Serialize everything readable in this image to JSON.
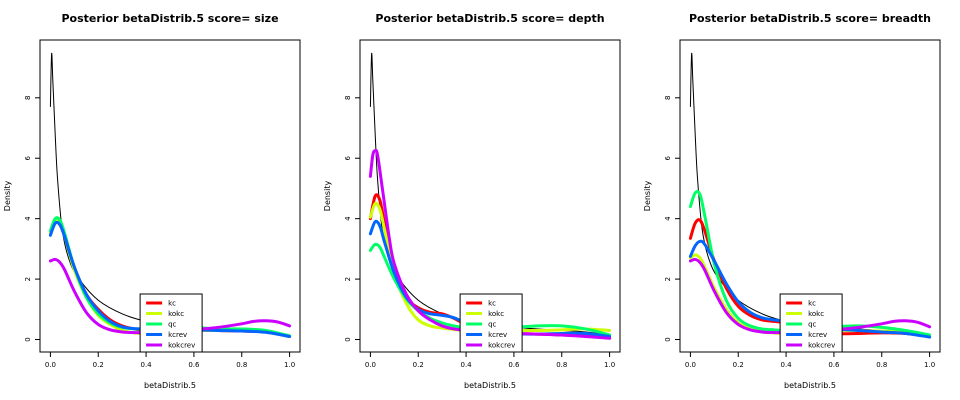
{
  "chart_data": [
    {
      "type": "line",
      "title": "Posterior betaDistrib.5  score= size",
      "xlabel": "betaDistrib.5",
      "ylabel": "Density",
      "xlim": [
        0,
        1
      ],
      "ylim": [
        0,
        9.5
      ],
      "xticks": [
        "0.0",
        "0.2",
        "0.4",
        "0.6",
        "0.8",
        "1.0"
      ],
      "yticks": [
        "0",
        "2",
        "4",
        "6",
        "8"
      ],
      "legend_position": "bottom-center",
      "prior": {
        "x": [
          0.0,
          0.005,
          0.01,
          0.02,
          0.03,
          0.05,
          0.08,
          0.12,
          0.2,
          0.3,
          0.4,
          0.5,
          0.6,
          0.7,
          0.8,
          0.9,
          1.0
        ],
        "y": [
          7.7,
          9.45,
          8.6,
          6.8,
          5.3,
          3.6,
          2.6,
          2.0,
          1.3,
          0.85,
          0.6,
          0.47,
          0.4,
          0.35,
          0.3,
          0.25,
          0.15
        ]
      },
      "series": [
        {
          "name": "kc",
          "color": "#ff0000",
          "x": [
            0.0,
            0.02,
            0.04,
            0.06,
            0.1,
            0.15,
            0.2,
            0.25,
            0.3,
            0.35,
            0.4,
            0.5,
            0.6,
            0.7,
            0.8,
            0.9,
            1.0
          ],
          "y": [
            3.5,
            3.85,
            3.8,
            3.4,
            2.4,
            1.5,
            1.0,
            0.65,
            0.45,
            0.35,
            0.3,
            0.28,
            0.3,
            0.3,
            0.28,
            0.25,
            0.1
          ]
        },
        {
          "name": "kokc",
          "color": "#ccff00",
          "x": [
            0.0,
            0.02,
            0.04,
            0.06,
            0.1,
            0.15,
            0.2,
            0.25,
            0.3,
            0.35,
            0.4,
            0.5,
            0.6,
            0.7,
            0.8,
            0.9,
            1.0
          ],
          "y": [
            3.5,
            3.9,
            3.85,
            3.4,
            2.3,
            1.4,
            0.8,
            0.5,
            0.3,
            0.22,
            0.2,
            0.25,
            0.3,
            0.3,
            0.3,
            0.28,
            0.12
          ]
        },
        {
          "name": "qc",
          "color": "#00ff66",
          "x": [
            0.0,
            0.02,
            0.04,
            0.06,
            0.1,
            0.15,
            0.2,
            0.25,
            0.3,
            0.35,
            0.4,
            0.5,
            0.6,
            0.7,
            0.8,
            0.9,
            1.0
          ],
          "y": [
            3.6,
            4.0,
            3.95,
            3.5,
            2.4,
            1.4,
            0.85,
            0.55,
            0.4,
            0.35,
            0.35,
            0.38,
            0.4,
            0.35,
            0.35,
            0.3,
            0.12
          ]
        },
        {
          "name": "kcrev",
          "color": "#0066ff",
          "x": [
            0.0,
            0.02,
            0.04,
            0.06,
            0.1,
            0.15,
            0.2,
            0.25,
            0.3,
            0.35,
            0.4,
            0.5,
            0.6,
            0.7,
            0.8,
            0.9,
            1.0
          ],
          "y": [
            3.45,
            3.85,
            3.8,
            3.4,
            2.4,
            1.5,
            0.95,
            0.6,
            0.42,
            0.36,
            0.35,
            0.33,
            0.32,
            0.3,
            0.28,
            0.24,
            0.1
          ]
        },
        {
          "name": "kokcrev",
          "color": "#cc00ff",
          "x": [
            0.0,
            0.02,
            0.04,
            0.06,
            0.1,
            0.15,
            0.2,
            0.25,
            0.3,
            0.35,
            0.4,
            0.5,
            0.6,
            0.7,
            0.8,
            0.85,
            0.9,
            0.95,
            1.0
          ],
          "y": [
            2.6,
            2.65,
            2.55,
            2.3,
            1.6,
            0.9,
            0.5,
            0.32,
            0.25,
            0.23,
            0.23,
            0.28,
            0.33,
            0.4,
            0.52,
            0.6,
            0.62,
            0.58,
            0.45
          ]
        }
      ],
      "legend": [
        "kc",
        "kokc",
        "qc",
        "kcrev",
        "kokcrev"
      ]
    },
    {
      "type": "line",
      "title": "Posterior betaDistrib.5  score= depth",
      "xlabel": "betaDistrib.5",
      "ylabel": "Density",
      "xlim": [
        0,
        1
      ],
      "ylim": [
        0,
        9.5
      ],
      "xticks": [
        "0.0",
        "0.2",
        "0.4",
        "0.6",
        "0.8",
        "1.0"
      ],
      "yticks": [
        "0",
        "2",
        "4",
        "6",
        "8"
      ],
      "legend_position": "bottom-center",
      "prior": {
        "x": [
          0.0,
          0.005,
          0.01,
          0.02,
          0.03,
          0.05,
          0.08,
          0.12,
          0.2,
          0.3,
          0.4,
          0.5,
          0.6,
          0.7,
          0.8,
          0.9,
          1.0
        ],
        "y": [
          7.7,
          9.45,
          8.6,
          6.8,
          5.3,
          3.6,
          2.6,
          2.0,
          1.3,
          0.85,
          0.6,
          0.47,
          0.4,
          0.35,
          0.3,
          0.25,
          0.15
        ]
      },
      "series": [
        {
          "name": "kc",
          "color": "#ff0000",
          "x": [
            0.0,
            0.02,
            0.04,
            0.06,
            0.1,
            0.15,
            0.2,
            0.25,
            0.3,
            0.35,
            0.4,
            0.5,
            0.6,
            0.7,
            0.8,
            0.9,
            1.0
          ],
          "y": [
            4.0,
            4.75,
            4.6,
            3.8,
            2.3,
            1.4,
            1.05,
            0.9,
            0.85,
            0.7,
            0.5,
            0.28,
            0.2,
            0.18,
            0.15,
            0.12,
            0.05
          ]
        },
        {
          "name": "kokc",
          "color": "#ccff00",
          "x": [
            0.0,
            0.02,
            0.04,
            0.06,
            0.1,
            0.15,
            0.2,
            0.25,
            0.3,
            0.35,
            0.4,
            0.5,
            0.6,
            0.7,
            0.8,
            0.9,
            1.0
          ],
          "y": [
            4.05,
            4.5,
            4.3,
            3.6,
            2.2,
            1.2,
            0.65,
            0.45,
            0.38,
            0.33,
            0.3,
            0.3,
            0.3,
            0.3,
            0.32,
            0.35,
            0.3
          ]
        },
        {
          "name": "qc",
          "color": "#00ff66",
          "x": [
            0.0,
            0.02,
            0.04,
            0.06,
            0.1,
            0.15,
            0.2,
            0.25,
            0.3,
            0.35,
            0.4,
            0.5,
            0.6,
            0.7,
            0.8,
            0.9,
            1.0
          ],
          "y": [
            2.95,
            3.15,
            3.05,
            2.7,
            2.0,
            1.35,
            0.95,
            0.7,
            0.55,
            0.45,
            0.38,
            0.35,
            0.4,
            0.45,
            0.45,
            0.35,
            0.15
          ]
        },
        {
          "name": "kcrev",
          "color": "#0066ff",
          "x": [
            0.0,
            0.02,
            0.04,
            0.06,
            0.1,
            0.15,
            0.2,
            0.25,
            0.3,
            0.35,
            0.4,
            0.5,
            0.6,
            0.7,
            0.8,
            0.9,
            1.0
          ],
          "y": [
            3.5,
            3.9,
            3.75,
            3.2,
            2.2,
            1.4,
            1.0,
            0.85,
            0.8,
            0.72,
            0.55,
            0.3,
            0.2,
            0.18,
            0.2,
            0.2,
            0.1
          ]
        },
        {
          "name": "kokcrev",
          "color": "#cc00ff",
          "x": [
            0.0,
            0.01,
            0.02,
            0.03,
            0.05,
            0.08,
            0.1,
            0.15,
            0.2,
            0.25,
            0.3,
            0.35,
            0.4,
            0.5,
            0.6,
            0.7,
            0.8,
            0.9,
            1.0
          ],
          "y": [
            5.4,
            6.1,
            6.25,
            6.1,
            5.0,
            3.3,
            2.5,
            1.5,
            0.95,
            0.65,
            0.45,
            0.35,
            0.3,
            0.22,
            0.2,
            0.18,
            0.15,
            0.1,
            0.04
          ]
        }
      ],
      "legend": [
        "kc",
        "kokc",
        "qc",
        "kcrev",
        "kokcrev"
      ]
    },
    {
      "type": "line",
      "title": "Posterior betaDistrib.5  score= breadth",
      "xlabel": "betaDistrib.5",
      "ylabel": "Density",
      "xlim": [
        0,
        1
      ],
      "ylim": [
        0,
        9.5
      ],
      "xticks": [
        "0.0",
        "0.2",
        "0.4",
        "0.6",
        "0.8",
        "1.0"
      ],
      "yticks": [
        "0",
        "2",
        "4",
        "6",
        "8"
      ],
      "legend_position": "bottom-center",
      "prior": {
        "x": [
          0.0,
          0.005,
          0.01,
          0.02,
          0.03,
          0.05,
          0.08,
          0.12,
          0.2,
          0.3,
          0.4,
          0.5,
          0.6,
          0.7,
          0.8,
          0.9,
          1.0
        ],
        "y": [
          7.7,
          9.45,
          8.6,
          6.8,
          5.3,
          3.6,
          2.6,
          2.0,
          1.3,
          0.85,
          0.6,
          0.47,
          0.4,
          0.35,
          0.3,
          0.25,
          0.15
        ]
      },
      "series": [
        {
          "name": "kc",
          "color": "#ff0000",
          "x": [
            0.0,
            0.02,
            0.04,
            0.06,
            0.1,
            0.15,
            0.2,
            0.25,
            0.3,
            0.35,
            0.4,
            0.5,
            0.6,
            0.7,
            0.8,
            0.9,
            1.0
          ],
          "y": [
            3.35,
            3.85,
            3.95,
            3.6,
            2.6,
            1.7,
            1.1,
            0.8,
            0.65,
            0.6,
            0.55,
            0.35,
            0.2,
            0.2,
            0.22,
            0.2,
            0.1
          ]
        },
        {
          "name": "kokc",
          "color": "#ccff00",
          "x": [
            0.0,
            0.02,
            0.04,
            0.06,
            0.1,
            0.15,
            0.2,
            0.25,
            0.3,
            0.35,
            0.4,
            0.5,
            0.6,
            0.7,
            0.8,
            0.9,
            1.0
          ],
          "y": [
            2.7,
            2.8,
            2.7,
            2.4,
            1.7,
            1.0,
            0.55,
            0.35,
            0.25,
            0.22,
            0.2,
            0.25,
            0.3,
            0.3,
            0.28,
            0.25,
            0.1
          ]
        },
        {
          "name": "qc",
          "color": "#00ff66",
          "x": [
            0.0,
            0.02,
            0.04,
            0.06,
            0.1,
            0.15,
            0.2,
            0.25,
            0.3,
            0.35,
            0.4,
            0.5,
            0.6,
            0.7,
            0.8,
            0.9,
            1.0
          ],
          "y": [
            4.4,
            4.85,
            4.8,
            4.1,
            2.5,
            1.3,
            0.7,
            0.45,
            0.35,
            0.32,
            0.3,
            0.35,
            0.42,
            0.45,
            0.4,
            0.3,
            0.15
          ]
        },
        {
          "name": "kcrev",
          "color": "#0066ff",
          "x": [
            0.0,
            0.02,
            0.04,
            0.06,
            0.1,
            0.15,
            0.2,
            0.25,
            0.3,
            0.35,
            0.4,
            0.5,
            0.6,
            0.7,
            0.8,
            0.9,
            1.0
          ],
          "y": [
            2.75,
            3.1,
            3.25,
            3.15,
            2.6,
            1.85,
            1.25,
            0.9,
            0.72,
            0.65,
            0.6,
            0.5,
            0.35,
            0.3,
            0.25,
            0.2,
            0.08
          ]
        },
        {
          "name": "kokcrev",
          "color": "#cc00ff",
          "x": [
            0.0,
            0.02,
            0.04,
            0.06,
            0.1,
            0.15,
            0.2,
            0.25,
            0.3,
            0.35,
            0.4,
            0.5,
            0.6,
            0.7,
            0.8,
            0.85,
            0.9,
            0.95,
            1.0
          ],
          "y": [
            2.6,
            2.65,
            2.55,
            2.3,
            1.6,
            0.9,
            0.5,
            0.32,
            0.25,
            0.23,
            0.23,
            0.27,
            0.32,
            0.4,
            0.52,
            0.6,
            0.62,
            0.57,
            0.42
          ]
        }
      ],
      "legend": [
        "kc",
        "kokc",
        "qc",
        "kcrev",
        "kokcrev"
      ]
    }
  ]
}
